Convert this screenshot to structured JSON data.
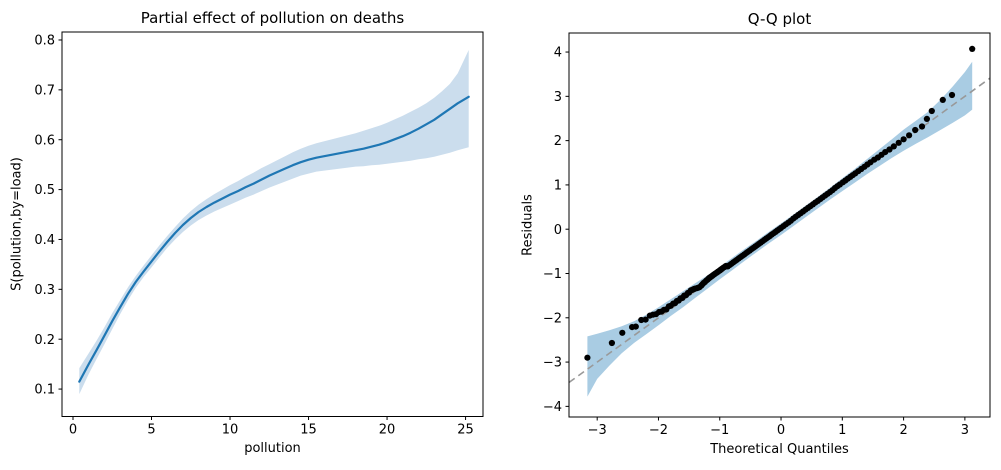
{
  "figure": {
    "background": "#ffffff"
  },
  "chart_data": [
    {
      "id": "partial-effect-plot",
      "type": "line",
      "title": "Partial effect of pollution on deaths",
      "xlabel": "pollution",
      "ylabel": "S(pollution,by=load)",
      "xlim": [
        -0.7,
        26.11
      ],
      "ylim": [
        0.045,
        0.816
      ],
      "grid": false,
      "legend": "none",
      "xticks": {
        "values": [
          0,
          5,
          10,
          15,
          20,
          25
        ],
        "labels": [
          "0",
          "5",
          "10",
          "15",
          "20",
          "25"
        ]
      },
      "yticks": {
        "values": [
          0.1,
          0.2,
          0.3,
          0.4,
          0.5,
          0.6,
          0.7,
          0.8
        ],
        "labels": [
          "0.1",
          "0.2",
          "0.3",
          "0.4",
          "0.5",
          "0.6",
          "0.7",
          "0.8"
        ]
      },
      "line_color": "#1f77b4",
      "band_color": "#cbdded",
      "line": {
        "x": [
          0.4,
          1.0,
          1.5,
          2.0,
          2.5,
          3.0,
          3.5,
          4.0,
          4.5,
          5.0,
          5.5,
          6.0,
          6.5,
          7.0,
          7.5,
          8.0,
          8.5,
          9.0,
          9.5,
          10.0,
          10.5,
          11.0,
          11.5,
          12.0,
          12.5,
          13.0,
          13.5,
          14.0,
          14.5,
          15.0,
          15.5,
          16.0,
          16.5,
          17.0,
          17.5,
          18.0,
          18.5,
          19.0,
          19.5,
          20.0,
          20.5,
          21.0,
          21.5,
          22.0,
          22.5,
          23.0,
          23.5,
          24.0,
          24.5,
          25.2
        ],
        "y": [
          0.115,
          0.15,
          0.178,
          0.207,
          0.236,
          0.264,
          0.291,
          0.315,
          0.336,
          0.356,
          0.376,
          0.395,
          0.413,
          0.429,
          0.443,
          0.455,
          0.465,
          0.474,
          0.482,
          0.49,
          0.497,
          0.505,
          0.512,
          0.52,
          0.528,
          0.535,
          0.542,
          0.549,
          0.555,
          0.56,
          0.564,
          0.567,
          0.57,
          0.573,
          0.576,
          0.579,
          0.582,
          0.586,
          0.59,
          0.595,
          0.601,
          0.607,
          0.614,
          0.622,
          0.631,
          0.64,
          0.651,
          0.662,
          0.673,
          0.686
        ]
      },
      "band": {
        "x": [
          0.4,
          1.0,
          1.5,
          2.0,
          2.5,
          3.0,
          3.5,
          4.0,
          4.5,
          5.0,
          5.5,
          6.0,
          6.5,
          7.0,
          7.5,
          8.0,
          8.5,
          9.0,
          9.5,
          10.0,
          10.5,
          11.0,
          11.5,
          12.0,
          12.5,
          13.0,
          13.5,
          14.0,
          14.5,
          15.0,
          15.5,
          16.0,
          16.5,
          17.0,
          17.5,
          18.0,
          18.5,
          19.0,
          19.5,
          20.0,
          20.5,
          21.0,
          21.5,
          22.0,
          22.5,
          23.0,
          23.5,
          24.0,
          24.5,
          25.2
        ],
        "lower": [
          0.09,
          0.13,
          0.16,
          0.19,
          0.22,
          0.25,
          0.278,
          0.303,
          0.325,
          0.344,
          0.364,
          0.383,
          0.4,
          0.415,
          0.428,
          0.439,
          0.448,
          0.456,
          0.463,
          0.47,
          0.477,
          0.484,
          0.49,
          0.497,
          0.504,
          0.51,
          0.516,
          0.522,
          0.528,
          0.532,
          0.536,
          0.538,
          0.54,
          0.542,
          0.544,
          0.546,
          0.547,
          0.549,
          0.55,
          0.552,
          0.554,
          0.556,
          0.558,
          0.561,
          0.563,
          0.566,
          0.57,
          0.574,
          0.579,
          0.585
        ],
        "upper": [
          0.142,
          0.172,
          0.197,
          0.224,
          0.252,
          0.278,
          0.304,
          0.327,
          0.348,
          0.368,
          0.388,
          0.407,
          0.425,
          0.442,
          0.457,
          0.47,
          0.481,
          0.491,
          0.5,
          0.509,
          0.517,
          0.526,
          0.534,
          0.543,
          0.551,
          0.559,
          0.567,
          0.575,
          0.582,
          0.588,
          0.593,
          0.597,
          0.601,
          0.605,
          0.609,
          0.613,
          0.618,
          0.623,
          0.628,
          0.634,
          0.641,
          0.648,
          0.656,
          0.664,
          0.673,
          0.684,
          0.697,
          0.712,
          0.733,
          0.78
        ]
      }
    },
    {
      "id": "qq-plot",
      "type": "scatter",
      "title": "Q-Q plot",
      "xlabel": "Theoretical Quantiles",
      "ylabel": "Residuals",
      "xlim": [
        -3.46,
        3.41
      ],
      "ylim": [
        -4.24,
        4.43
      ],
      "grid": false,
      "legend": "none",
      "xticks": {
        "values": [
          -3,
          -2,
          -1,
          0,
          1,
          2,
          3
        ],
        "labels": [
          "−3",
          "−2",
          "−1",
          "0",
          "1",
          "2",
          "3"
        ]
      },
      "yticks": {
        "values": [
          -4,
          -3,
          -2,
          -1,
          0,
          1,
          2,
          3,
          4
        ],
        "labels": [
          "−4",
          "−3",
          "−2",
          "−1",
          "0",
          "1",
          "2",
          "3",
          "4"
        ]
      },
      "point_color": "#000000",
      "band_color": "#a9cce3",
      "ref_line": {
        "x": [
          -3.46,
          3.41
        ],
        "y": [
          -3.46,
          3.41
        ],
        "color": "#999999",
        "style": "dashed"
      },
      "band": {
        "x": [
          -3.16,
          -3.0,
          -2.8,
          -2.6,
          -2.4,
          -2.2,
          -2.0,
          -1.8,
          -1.6,
          -1.4,
          -1.2,
          -1.0,
          -0.8,
          -0.6,
          -0.4,
          -0.2,
          0.0,
          0.2,
          0.4,
          0.6,
          0.8,
          1.0,
          1.2,
          1.4,
          1.6,
          1.8,
          2.0,
          2.2,
          2.4,
          2.6,
          2.8,
          3.0,
          3.12
        ],
        "lower": [
          -3.78,
          -3.38,
          -3.08,
          -2.8,
          -2.57,
          -2.37,
          -2.17,
          -1.96,
          -1.76,
          -1.55,
          -1.34,
          -1.13,
          -0.93,
          -0.72,
          -0.52,
          -0.32,
          -0.13,
          0.07,
          0.27,
          0.47,
          0.67,
          0.86,
          1.05,
          1.24,
          1.42,
          1.6,
          1.77,
          1.93,
          2.08,
          2.24,
          2.4,
          2.57,
          2.7
        ],
        "upper": [
          -2.42,
          -2.36,
          -2.28,
          -2.19,
          -2.08,
          -1.93,
          -1.76,
          -1.58,
          -1.4,
          -1.22,
          -1.04,
          -0.85,
          -0.65,
          -0.45,
          -0.26,
          -0.06,
          0.13,
          0.33,
          0.53,
          0.73,
          0.94,
          1.15,
          1.36,
          1.58,
          1.8,
          2.02,
          2.25,
          2.45,
          2.65,
          2.92,
          3.22,
          3.55,
          3.78
        ]
      },
      "points": [
        [
          -3.16,
          -2.9
        ],
        [
          -2.76,
          -2.57
        ],
        [
          -2.59,
          -2.34
        ],
        [
          -2.43,
          -2.21
        ],
        [
          -2.37,
          -2.2
        ],
        [
          -2.28,
          -2.05
        ],
        [
          -2.21,
          -2.04
        ],
        [
          -2.14,
          -1.95
        ],
        [
          -2.09,
          -1.93
        ],
        [
          -2.04,
          -1.92
        ],
        [
          -1.99,
          -1.87
        ],
        [
          -1.95,
          -1.86
        ],
        [
          -1.91,
          -1.82
        ],
        [
          -1.87,
          -1.81
        ],
        [
          -1.83,
          -1.74
        ],
        [
          -1.8,
          -1.73
        ],
        [
          -1.76,
          -1.68
        ],
        [
          -1.73,
          -1.67
        ],
        [
          -1.7,
          -1.62
        ],
        [
          -1.67,
          -1.61
        ],
        [
          -1.64,
          -1.56
        ],
        [
          -1.61,
          -1.55
        ],
        [
          -1.58,
          -1.5
        ],
        [
          -1.55,
          -1.49
        ],
        [
          -1.52,
          -1.44
        ],
        [
          -1.5,
          -1.43
        ],
        [
          -1.47,
          -1.38
        ],
        [
          -1.45,
          -1.37
        ],
        [
          -1.42,
          -1.35
        ],
        [
          -1.4,
          -1.34
        ],
        [
          -1.37,
          -1.33
        ],
        [
          -1.35,
          -1.32
        ],
        [
          -1.33,
          -1.31
        ],
        [
          -1.3,
          -1.27
        ],
        [
          -1.28,
          -1.24
        ],
        [
          -1.26,
          -1.21
        ],
        [
          -1.24,
          -1.19
        ],
        [
          -1.22,
          -1.16
        ],
        [
          -1.2,
          -1.14
        ],
        [
          -1.18,
          -1.11
        ],
        [
          -1.16,
          -1.09
        ],
        [
          -1.14,
          -1.07
        ],
        [
          -1.12,
          -1.05
        ],
        [
          -1.1,
          -1.03
        ],
        [
          -1.08,
          -1.01
        ],
        [
          -1.06,
          -0.99
        ],
        [
          -1.04,
          -0.97
        ],
        [
          -1.02,
          -0.95
        ],
        [
          -1.0,
          -0.93
        ],
        [
          -0.98,
          -0.91
        ],
        [
          -0.96,
          -0.89
        ],
        [
          -0.94,
          -0.87
        ],
        [
          -0.92,
          -0.85
        ],
        [
          -0.9,
          -0.83
        ],
        [
          -0.87,
          -0.84
        ],
        [
          -0.84,
          -0.81
        ],
        [
          -0.81,
          -0.78
        ],
        [
          -0.78,
          -0.75
        ],
        [
          -0.75,
          -0.72
        ],
        [
          -0.72,
          -0.69
        ],
        [
          -0.69,
          -0.66
        ],
        [
          -0.66,
          -0.63
        ],
        [
          -0.63,
          -0.6
        ],
        [
          -0.6,
          -0.57
        ],
        [
          -0.57,
          -0.54
        ],
        [
          -0.54,
          -0.51
        ],
        [
          -0.51,
          -0.48
        ],
        [
          -0.48,
          -0.45
        ],
        [
          -0.45,
          -0.42
        ],
        [
          -0.42,
          -0.39
        ],
        [
          -0.39,
          -0.36
        ],
        [
          -0.36,
          -0.33
        ],
        [
          -0.33,
          -0.3
        ],
        [
          -0.3,
          -0.27
        ],
        [
          -0.27,
          -0.24
        ],
        [
          -0.24,
          -0.21
        ],
        [
          -0.21,
          -0.18
        ],
        [
          -0.18,
          -0.15
        ],
        [
          -0.15,
          -0.12
        ],
        [
          -0.12,
          -0.09
        ],
        [
          -0.09,
          -0.06
        ],
        [
          -0.06,
          -0.03
        ],
        [
          -0.03,
          0.0
        ],
        [
          0.0,
          0.03
        ],
        [
          0.04,
          0.07
        ],
        [
          0.08,
          0.11
        ],
        [
          0.12,
          0.15
        ],
        [
          0.16,
          0.19
        ],
        [
          0.2,
          0.24
        ],
        [
          0.24,
          0.28
        ],
        [
          0.28,
          0.32
        ],
        [
          0.32,
          0.36
        ],
        [
          0.36,
          0.4
        ],
        [
          0.4,
          0.44
        ],
        [
          0.44,
          0.48
        ],
        [
          0.48,
          0.52
        ],
        [
          0.52,
          0.56
        ],
        [
          0.56,
          0.6
        ],
        [
          0.6,
          0.64
        ],
        [
          0.64,
          0.68
        ],
        [
          0.68,
          0.72
        ],
        [
          0.72,
          0.76
        ],
        [
          0.76,
          0.8
        ],
        [
          0.8,
          0.84
        ],
        [
          0.84,
          0.88
        ],
        [
          0.88,
          0.93
        ],
        [
          0.92,
          0.97
        ],
        [
          0.96,
          1.01
        ],
        [
          1.01,
          1.06
        ],
        [
          1.05,
          1.1
        ],
        [
          1.09,
          1.14
        ],
        [
          1.13,
          1.18
        ],
        [
          1.17,
          1.22
        ],
        [
          1.21,
          1.26
        ],
        [
          1.26,
          1.31
        ],
        [
          1.31,
          1.36
        ],
        [
          1.36,
          1.41
        ],
        [
          1.41,
          1.46
        ],
        [
          1.46,
          1.51
        ],
        [
          1.52,
          1.57
        ],
        [
          1.58,
          1.62
        ],
        [
          1.64,
          1.68
        ],
        [
          1.7,
          1.74
        ],
        [
          1.77,
          1.8
        ],
        [
          1.84,
          1.87
        ],
        [
          1.92,
          1.95
        ],
        [
          2.0,
          2.03
        ],
        [
          2.09,
          2.12
        ],
        [
          2.19,
          2.24
        ],
        [
          2.3,
          2.32
        ],
        [
          2.38,
          2.49
        ],
        [
          2.46,
          2.67
        ],
        [
          2.64,
          2.92
        ],
        [
          2.79,
          3.03
        ],
        [
          3.12,
          4.07
        ]
      ]
    }
  ]
}
